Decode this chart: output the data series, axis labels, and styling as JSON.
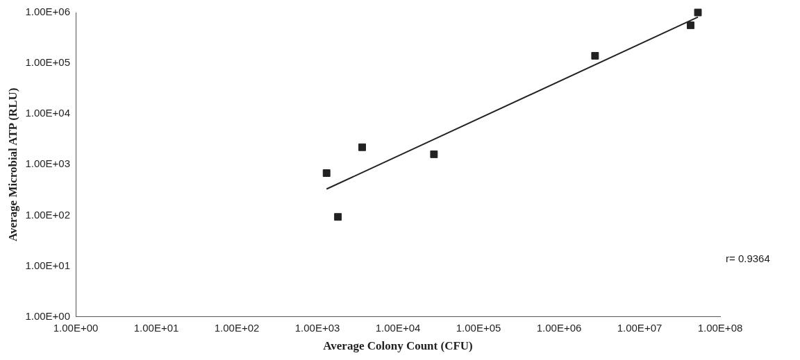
{
  "chart_data": {
    "type": "scatter",
    "xlabel": "Average Colony Count (CFU)",
    "ylabel": "Average Microbial ATP (RLU)",
    "log": "xy",
    "grid": false,
    "legend": false,
    "marker": "square",
    "xlim": [
      1,
      100000000
    ],
    "ylim": [
      1,
      1000000
    ],
    "xticks": [
      {
        "value": 1,
        "label": "1.00E+00"
      },
      {
        "value": 10,
        "label": "1.00E+01"
      },
      {
        "value": 100,
        "label": "1.00E+02"
      },
      {
        "value": 1000,
        "label": "1.00E+03"
      },
      {
        "value": 10000,
        "label": "1.00E+04"
      },
      {
        "value": 100000,
        "label": "1.00E+05"
      },
      {
        "value": 1000000,
        "label": "1.00E+06"
      },
      {
        "value": 10000000,
        "label": "1.00E+07"
      },
      {
        "value": 100000000,
        "label": "1.00E+08"
      }
    ],
    "yticks": [
      {
        "value": 1,
        "label": "1.00E+00"
      },
      {
        "value": 10,
        "label": "1.00E+01"
      },
      {
        "value": 100,
        "label": "1.00E+02"
      },
      {
        "value": 1000,
        "label": "1.00E+03"
      },
      {
        "value": 10000,
        "label": "1.00E+04"
      },
      {
        "value": 100000,
        "label": "1.00E+05"
      },
      {
        "value": 1000000,
        "label": "1.00E+06"
      }
    ],
    "annotations": [
      "r= 0.9364"
    ],
    "series": [
      {
        "type": "scatter",
        "color": "#222222",
        "x": [
          1300,
          1800,
          3600,
          28000,
          2800000,
          43000000,
          53000000
        ],
        "values": [
          680,
          93,
          2200,
          1600,
          140000,
          560000,
          1000000
        ]
      },
      {
        "type": "line",
        "color": "#222222",
        "marker": "none",
        "x": [
          1300,
          53000000
        ],
        "values": [
          330,
          810000
        ]
      }
    ]
  }
}
